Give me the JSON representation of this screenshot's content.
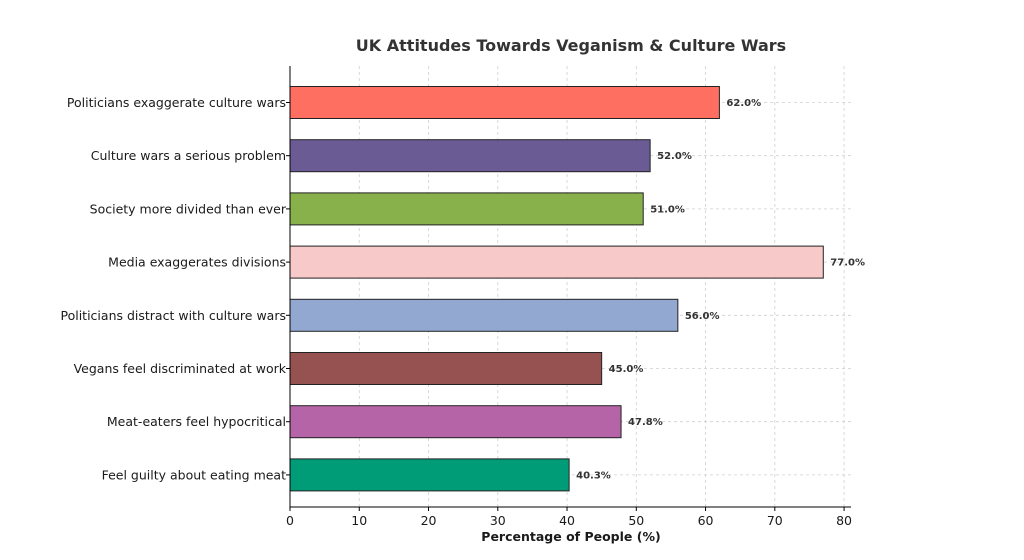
{
  "chart_data": {
    "type": "bar",
    "orientation": "horizontal",
    "title": "UK Attitudes Towards Veganism & Culture Wars",
    "xlabel": "Percentage of People (%)",
    "ylabel": "",
    "xlim": [
      0,
      81
    ],
    "xticks": [
      0,
      10,
      20,
      30,
      40,
      50,
      60,
      70,
      80
    ],
    "grid": true,
    "categories": [
      "Politicians exaggerate culture wars",
      "Culture wars a serious problem",
      "Society more divided than ever",
      "Media exaggerates divisions",
      "Politicians distract with culture wars",
      "Vegans feel discriminated at work",
      "Meat-eaters feel hypocritical",
      "Feel guilty about eating meat"
    ],
    "values": [
      62.0,
      52.0,
      51.0,
      77.0,
      56.0,
      45.0,
      47.8,
      40.3
    ],
    "value_labels": [
      "62.0%",
      "52.0%",
      "51.0%",
      "77.0%",
      "56.0%",
      "45.0%",
      "47.8%",
      "40.3%"
    ],
    "colors": [
      "#FF6F61",
      "#6B5B95",
      "#88B04B",
      "#F7CAC9",
      "#92A8D1",
      "#955251",
      "#B565A7",
      "#009B77"
    ]
  }
}
